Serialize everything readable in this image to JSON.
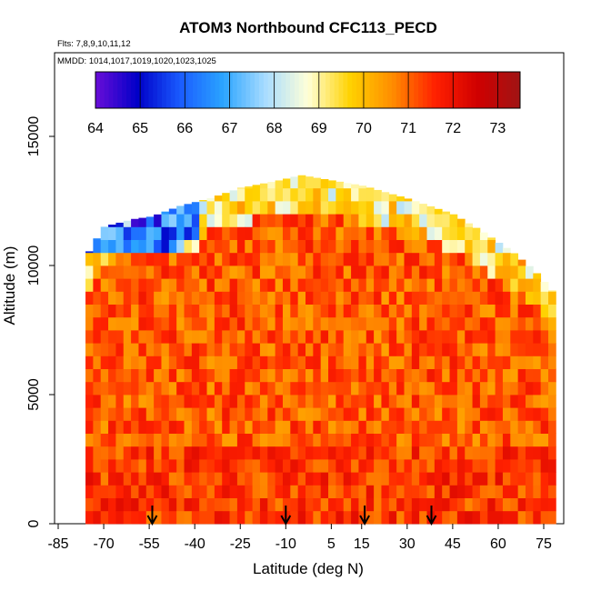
{
  "chart_data": {
    "type": "heatmap",
    "title": "ATOM3 Northbound CFC113_PECD",
    "annotations": {
      "flights": "Flts: 7,8,9,10,11,12",
      "mmdd": "MMDD: 1014,1017,1019,1020,1023,1025"
    },
    "xlabel": "Latitude (deg N)",
    "ylabel": "Altitude (m)",
    "xlim": [
      -85,
      85
    ],
    "ylim": [
      0,
      18000
    ],
    "x_ticks": [
      -85,
      -70,
      -55,
      -40,
      -25,
      -10,
      5,
      15,
      30,
      45,
      60,
      75
    ],
    "y_ticks": [
      0,
      5000,
      10000,
      15000
    ],
    "colorbar": {
      "min": 64,
      "max": 73.5,
      "ticks": [
        64,
        65,
        66,
        67,
        68,
        69,
        70,
        71,
        72,
        73
      ],
      "colors": [
        "#6a0dd8",
        "#0000c8",
        "#1a5cff",
        "#2aa4ff",
        "#a8dcff",
        "#ffffd8",
        "#ffd200",
        "#ff8c00",
        "#ff2000",
        "#d00000",
        "#a01414"
      ]
    },
    "arrow_latitudes": [
      -54,
      -10,
      16,
      38
    ],
    "coverage_profile": [
      {
        "lat": -76,
        "top": 10300
      },
      {
        "lat": -70,
        "top": 11500
      },
      {
        "lat": -60,
        "top": 11800
      },
      {
        "lat": -54,
        "top": 11900
      },
      {
        "lat": -45,
        "top": 12300
      },
      {
        "lat": -35,
        "top": 12600
      },
      {
        "lat": -25,
        "top": 13000
      },
      {
        "lat": -12,
        "top": 13300
      },
      {
        "lat": -5,
        "top": 13500
      },
      {
        "lat": 5,
        "top": 13300
      },
      {
        "lat": 15,
        "top": 13100
      },
      {
        "lat": 30,
        "top": 12600
      },
      {
        "lat": 45,
        "top": 12000
      },
      {
        "lat": 55,
        "top": 11300
      },
      {
        "lat": 65,
        "top": 10500
      },
      {
        "lat": 72,
        "top": 9800
      },
      {
        "lat": 78,
        "top": 9000
      }
    ],
    "grid": false,
    "legend_placement": "top"
  }
}
